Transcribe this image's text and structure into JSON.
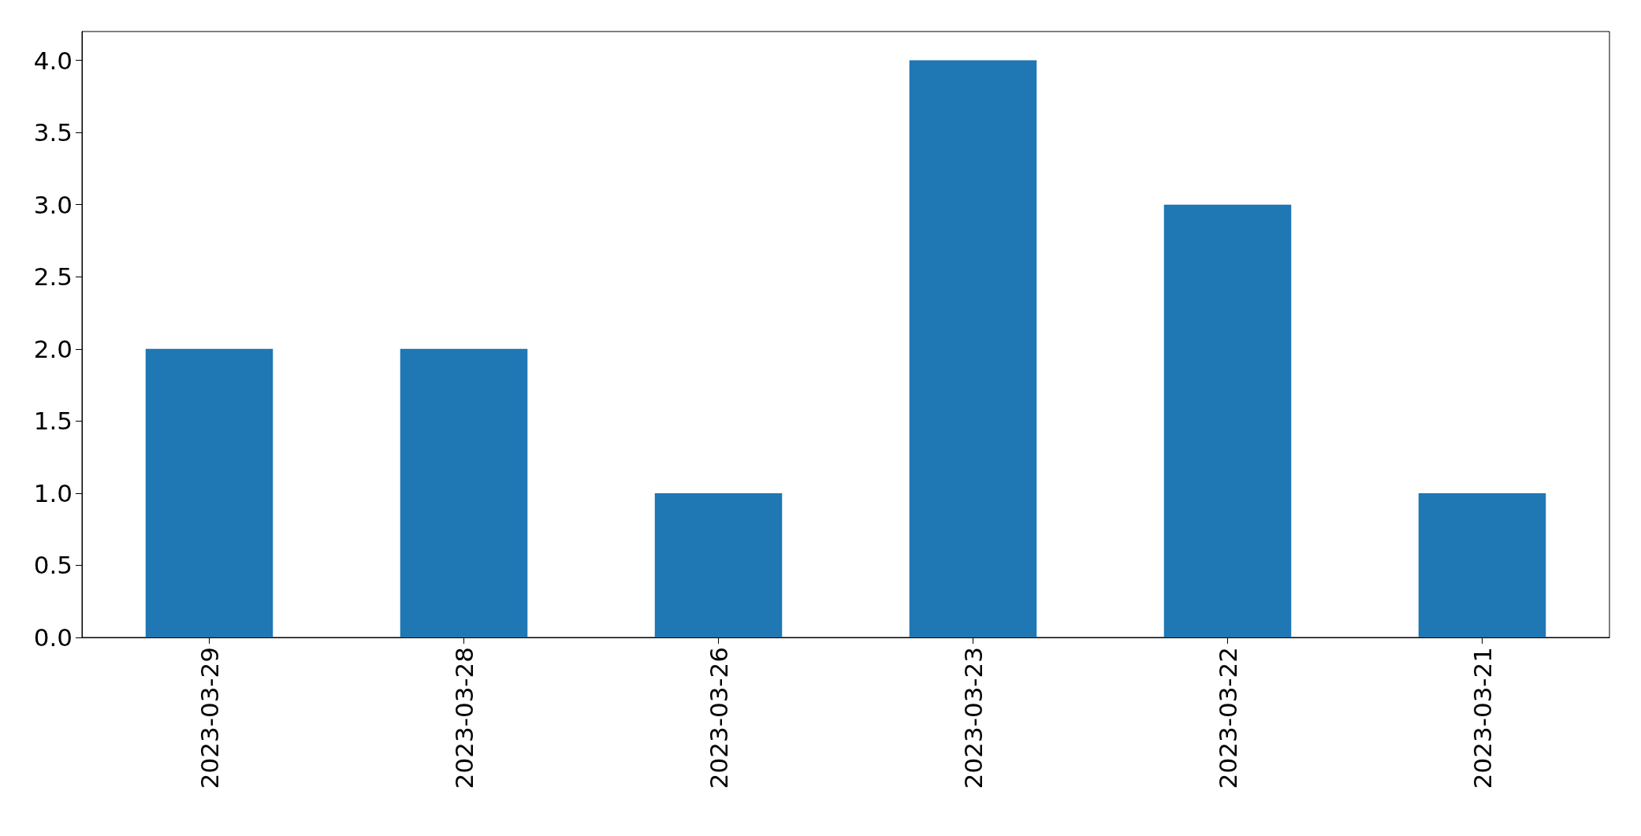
{
  "chart_data": {
    "type": "bar",
    "categories": [
      "2023-03-29",
      "2023-03-28",
      "2023-03-26",
      "2023-03-23",
      "2023-03-22",
      "2023-03-21"
    ],
    "values": [
      2,
      2,
      1,
      4,
      3,
      1
    ],
    "color": "#1f77b4",
    "ylim": [
      0,
      4.2
    ],
    "yticks": [
      {
        "value": 0,
        "label": "0.0"
      },
      {
        "value": 0.5,
        "label": "0.5"
      },
      {
        "value": 1,
        "label": "1.0"
      },
      {
        "value": 1.5,
        "label": "1.5"
      },
      {
        "value": 2,
        "label": "2.0"
      },
      {
        "value": 2.5,
        "label": "2.5"
      },
      {
        "value": 3,
        "label": "3.0"
      },
      {
        "value": 3.5,
        "label": "3.5"
      },
      {
        "value": 4,
        "label": "4.0"
      }
    ],
    "grid": false
  }
}
